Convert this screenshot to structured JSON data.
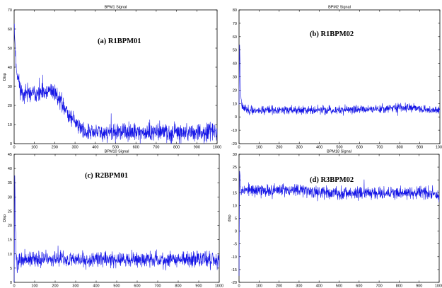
{
  "chart_data": [
    {
      "type": "line",
      "title": "BPM1  Signal",
      "annotation": "(a)  R1BPM01",
      "xlabel": "",
      "ylabel": "Disp",
      "xlim": [
        0,
        1000
      ],
      "ylim": [
        0,
        70
      ],
      "xticks": [
        0,
        100,
        200,
        300,
        400,
        500,
        600,
        700,
        800,
        900,
        1000
      ],
      "yticks": [
        0,
        10,
        20,
        30,
        40,
        50,
        60,
        70
      ],
      "color": "#1414e6",
      "series": [
        {
          "x": [
            0,
            5,
            10,
            20,
            30,
            40,
            60,
            80,
            100,
            120,
            140,
            160,
            180,
            200,
            220,
            240,
            260,
            280,
            300,
            320,
            340,
            360,
            380,
            400,
            450,
            500,
            550,
            600,
            650,
            700,
            750,
            800,
            850,
            900,
            950,
            1000
          ],
          "y": [
            65,
            50,
            40,
            34,
            29,
            27,
            26,
            26,
            27,
            26,
            26,
            26,
            28,
            27,
            24,
            20,
            17,
            14,
            12,
            9,
            7,
            6,
            6,
            6,
            6,
            6,
            6,
            6,
            6,
            6,
            6,
            6,
            6,
            6,
            6,
            6
          ]
        }
      ]
    },
    {
      "type": "line",
      "title": "BPM2  Signal",
      "annotation": "(b)  R1BPM02",
      "xlabel": "",
      "ylabel": "",
      "xlim": [
        0,
        1000
      ],
      "ylim": [
        -20,
        80
      ],
      "xticks": [
        0,
        100,
        200,
        300,
        400,
        500,
        600,
        700,
        800,
        900,
        1000
      ],
      "yticks": [
        -20,
        -10,
        0,
        10,
        20,
        30,
        40,
        50,
        60,
        70,
        80
      ],
      "color": "#1414e6",
      "series": [
        {
          "x": [
            0,
            3,
            6,
            10,
            15,
            20,
            30,
            50,
            100,
            200,
            300,
            400,
            500,
            600,
            700,
            800,
            900,
            1000
          ],
          "y": [
            10,
            55,
            30,
            15,
            8,
            8,
            6,
            5,
            5,
            5,
            5,
            5,
            5,
            6,
            6,
            7,
            6,
            5
          ]
        }
      ]
    },
    {
      "type": "line",
      "title": "BPM10  Signal",
      "annotation": "(c)  R2BPM01",
      "xlabel": "Turn",
      "ylabel": "Disp",
      "xlim": [
        0,
        1000
      ],
      "ylim": [
        0,
        45
      ],
      "xticks": [
        0,
        100,
        200,
        300,
        400,
        500,
        600,
        700,
        800,
        900,
        1000
      ],
      "yticks": [
        0,
        5,
        10,
        15,
        20,
        25,
        30,
        35,
        40,
        45
      ],
      "color": "#1414e6",
      "series": [
        {
          "x": [
            0,
            3,
            6,
            10,
            15,
            20,
            30,
            50,
            100,
            200,
            300,
            400,
            500,
            600,
            700,
            800,
            900,
            1000
          ],
          "y": [
            0,
            38,
            20,
            10,
            5,
            7,
            8,
            8,
            8,
            8,
            8,
            8,
            8,
            8,
            8,
            8,
            8,
            8
          ]
        }
      ]
    },
    {
      "type": "line",
      "title": "BPM18  Signal",
      "annotation": "(d)  R3BPM02",
      "xlabel": "Turn",
      "ylabel": "disp",
      "xlim": [
        0,
        1000
      ],
      "ylim": [
        -20,
        30
      ],
      "xticks": [
        0,
        100,
        200,
        300,
        400,
        500,
        600,
        700,
        800,
        900,
        1000
      ],
      "yticks": [
        -20,
        -15,
        -10,
        -5,
        0,
        5,
        10,
        15,
        20,
        25,
        30
      ],
      "color": "#1414e6",
      "series": [
        {
          "x": [
            0,
            3,
            6,
            10,
            15,
            20,
            30,
            50,
            100,
            200,
            300,
            400,
            500,
            600,
            700,
            800,
            900,
            1000
          ],
          "y": [
            -15,
            25,
            20,
            17,
            16,
            16,
            16,
            16,
            16,
            16,
            16,
            15,
            15,
            15,
            15,
            15,
            15,
            14
          ]
        }
      ]
    }
  ]
}
